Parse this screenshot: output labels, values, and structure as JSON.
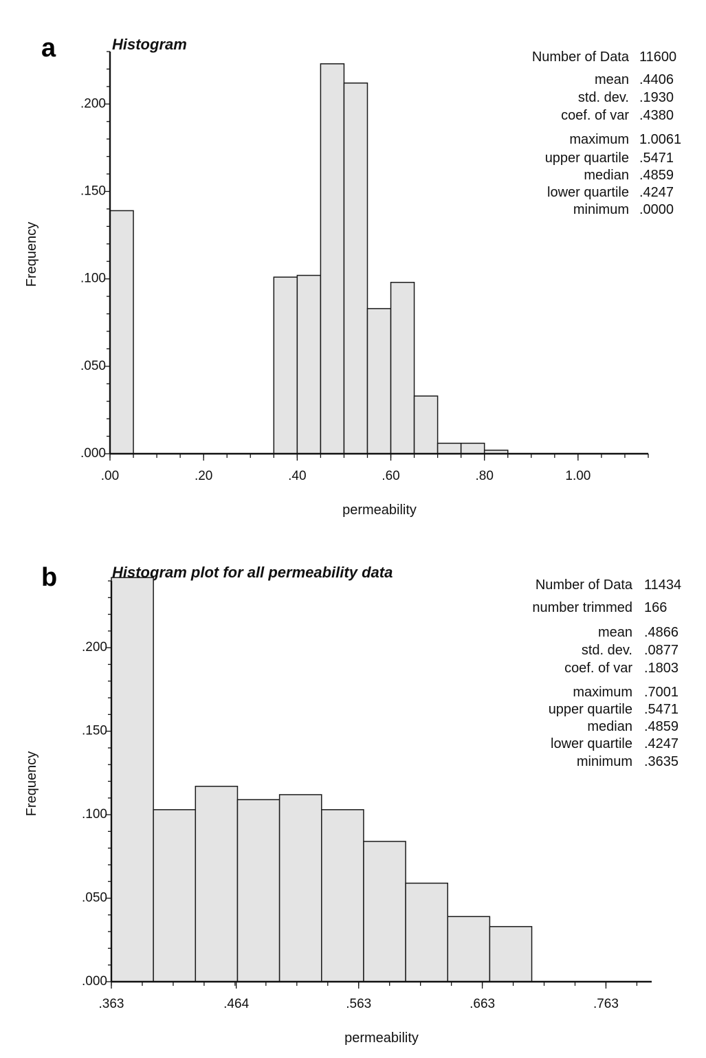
{
  "chart_data": [
    {
      "type": "bar",
      "panel_label": "a",
      "title": "Histogram",
      "xlabel": "permeability",
      "ylabel": "Frequency",
      "xlim": [
        0,
        1.15
      ],
      "ylim": [
        0,
        0.23
      ],
      "x_ticks": [
        0,
        0.2,
        0.4,
        0.6,
        0.8,
        1.0
      ],
      "x_tick_labels": [
        ".00",
        ".20",
        ".40",
        ".60",
        ".80",
        "1.00"
      ],
      "y_ticks": [
        0,
        0.05,
        0.1,
        0.15,
        0.2
      ],
      "y_tick_labels": [
        ".000",
        ".050",
        ".100",
        ".150",
        ".200"
      ],
      "bin_width": 0.05,
      "bins": [
        {
          "start": 0.0,
          "value": 0.139
        },
        {
          "start": 0.35,
          "value": 0.101
        },
        {
          "start": 0.4,
          "value": 0.102
        },
        {
          "start": 0.45,
          "value": 0.223
        },
        {
          "start": 0.5,
          "value": 0.212
        },
        {
          "start": 0.55,
          "value": 0.083
        },
        {
          "start": 0.6,
          "value": 0.098
        },
        {
          "start": 0.65,
          "value": 0.033
        },
        {
          "start": 0.7,
          "value": 0.006
        },
        {
          "start": 0.75,
          "value": 0.006
        },
        {
          "start": 0.8,
          "value": 0.002
        }
      ],
      "stats": [
        {
          "label": "Number of Data",
          "value": "11600"
        },
        {
          "label": "mean",
          "value": ".4406"
        },
        {
          "label": "std. dev.",
          "value": ".1930"
        },
        {
          "label": "coef. of var",
          "value": ".4380"
        },
        {
          "label": "maximum",
          "value": "1.0061"
        },
        {
          "label": "upper quartile",
          "value": ".5471"
        },
        {
          "label": "median",
          "value": ".4859"
        },
        {
          "label": "lower quartile",
          "value": ".4247"
        },
        {
          "label": "minimum",
          "value": ".0000"
        }
      ],
      "legend": "top-right",
      "grid": false
    },
    {
      "type": "bar",
      "panel_label": "b",
      "title": "Histogram plot for all permeability data",
      "xlabel": "permeability",
      "ylabel": "Frequency",
      "xlim": [
        0.363,
        0.8
      ],
      "ylim": [
        0,
        0.24
      ],
      "x_ticks": [
        0.363,
        0.464,
        0.563,
        0.663,
        0.763
      ],
      "x_tick_labels": [
        ".363",
        ".464",
        ".563",
        ".663",
        ".763"
      ],
      "y_ticks": [
        0,
        0.05,
        0.1,
        0.15,
        0.2
      ],
      "y_tick_labels": [
        ".000",
        ".050",
        ".100",
        ".150",
        ".200"
      ],
      "bin_width": 0.034,
      "bins": [
        {
          "start": 0.363,
          "value": 0.242
        },
        {
          "start": 0.397,
          "value": 0.103
        },
        {
          "start": 0.431,
          "value": 0.117
        },
        {
          "start": 0.465,
          "value": 0.109
        },
        {
          "start": 0.499,
          "value": 0.112
        },
        {
          "start": 0.533,
          "value": 0.103
        },
        {
          "start": 0.567,
          "value": 0.084
        },
        {
          "start": 0.601,
          "value": 0.059
        },
        {
          "start": 0.635,
          "value": 0.039
        },
        {
          "start": 0.669,
          "value": 0.033
        }
      ],
      "stats": [
        {
          "label": "Number of Data",
          "value": "11434"
        },
        {
          "label": "number trimmed",
          "value": "166"
        },
        {
          "label": "mean",
          "value": ".4866"
        },
        {
          "label": "std. dev.",
          "value": ".0877"
        },
        {
          "label": "coef. of var",
          "value": ".1803"
        },
        {
          "label": "maximum",
          "value": ".7001"
        },
        {
          "label": "upper quartile",
          "value": ".5471"
        },
        {
          "label": "median",
          "value": ".4859"
        },
        {
          "label": "lower quartile",
          "value": ".4247"
        },
        {
          "label": "minimum",
          "value": ".3635"
        }
      ],
      "legend": "top-right",
      "grid": false
    }
  ]
}
